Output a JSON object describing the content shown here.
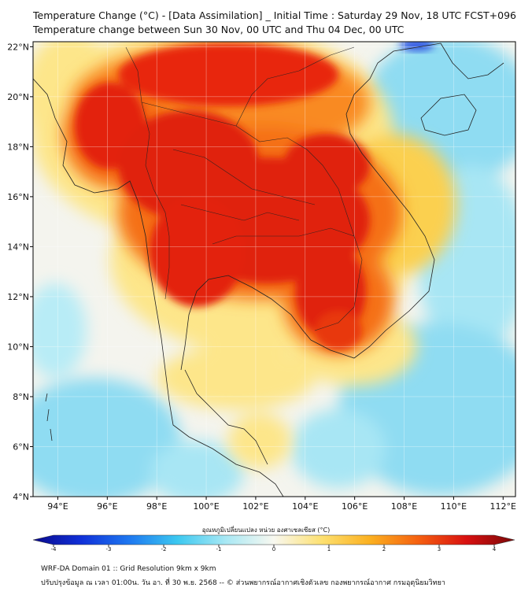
{
  "title_line1": "Temperature Change (°C) - [Data Assimilation] _ Initial Time : Saturday 29 Nov, 18 UTC FCST+096",
  "title_line2": "Temperature change between Sun 30 Nov, 00 UTC and Thu 04 Dec, 00 UTC",
  "map": {
    "lon_range": [
      93,
      112.5
    ],
    "lat_range": [
      4,
      22.2
    ],
    "x_ticks": [
      "94°E",
      "96°E",
      "98°E",
      "100°E",
      "102°E",
      "104°E",
      "106°E",
      "108°E",
      "110°E",
      "112°E"
    ],
    "x_tick_values": [
      94,
      96,
      98,
      100,
      102,
      104,
      106,
      108,
      110,
      112
    ],
    "y_ticks": [
      "22°N",
      "20°N",
      "18°N",
      "16°N",
      "14°N",
      "12°N",
      "10°N",
      "8°N",
      "6°N",
      "4°N"
    ],
    "y_tick_values": [
      22,
      20,
      18,
      16,
      14,
      12,
      10,
      8,
      6,
      4
    ],
    "colors": {
      "ocean_cool": "#7fd8f0",
      "neutral": "#f4f4ee",
      "warm_light": "#fde68a",
      "warm": "#fbbf24",
      "hot": "#f97316",
      "hottest": "#e0200f",
      "cold": "#1e40e0"
    }
  },
  "colorbar": {
    "label": "อุณหภูมิเปลี่ยนแปลง หน่วย องศาเซลเซียส (°C)",
    "ticks": [
      "-4",
      "-3",
      "-2",
      "-1",
      "0",
      "1",
      "2",
      "3",
      "4"
    ],
    "tick_values": [
      -4,
      -3,
      -2,
      -1,
      0,
      1,
      2,
      3,
      4
    ],
    "stops": [
      "#0a0a8c",
      "#1030d8",
      "#1e78f0",
      "#3cc8f0",
      "#a8e8f4",
      "#f8f8f0",
      "#fde070",
      "#fbb020",
      "#f56010",
      "#d81010",
      "#7a0808"
    ]
  },
  "footer_line1": "WRF-DA Domain 01 :: Grid Resolution 9km x 9km",
  "footer_line2": "ปรับปรุงข้อมูล ณ เวลา 01:00น. วัน อา. ที่ 30 พ.ย. 2568 -- © ส่วนพยากรณ์อากาศเชิงตัวเลข กองพยากรณ์อากาศ กรมอุตุนิยมวิทยา"
}
